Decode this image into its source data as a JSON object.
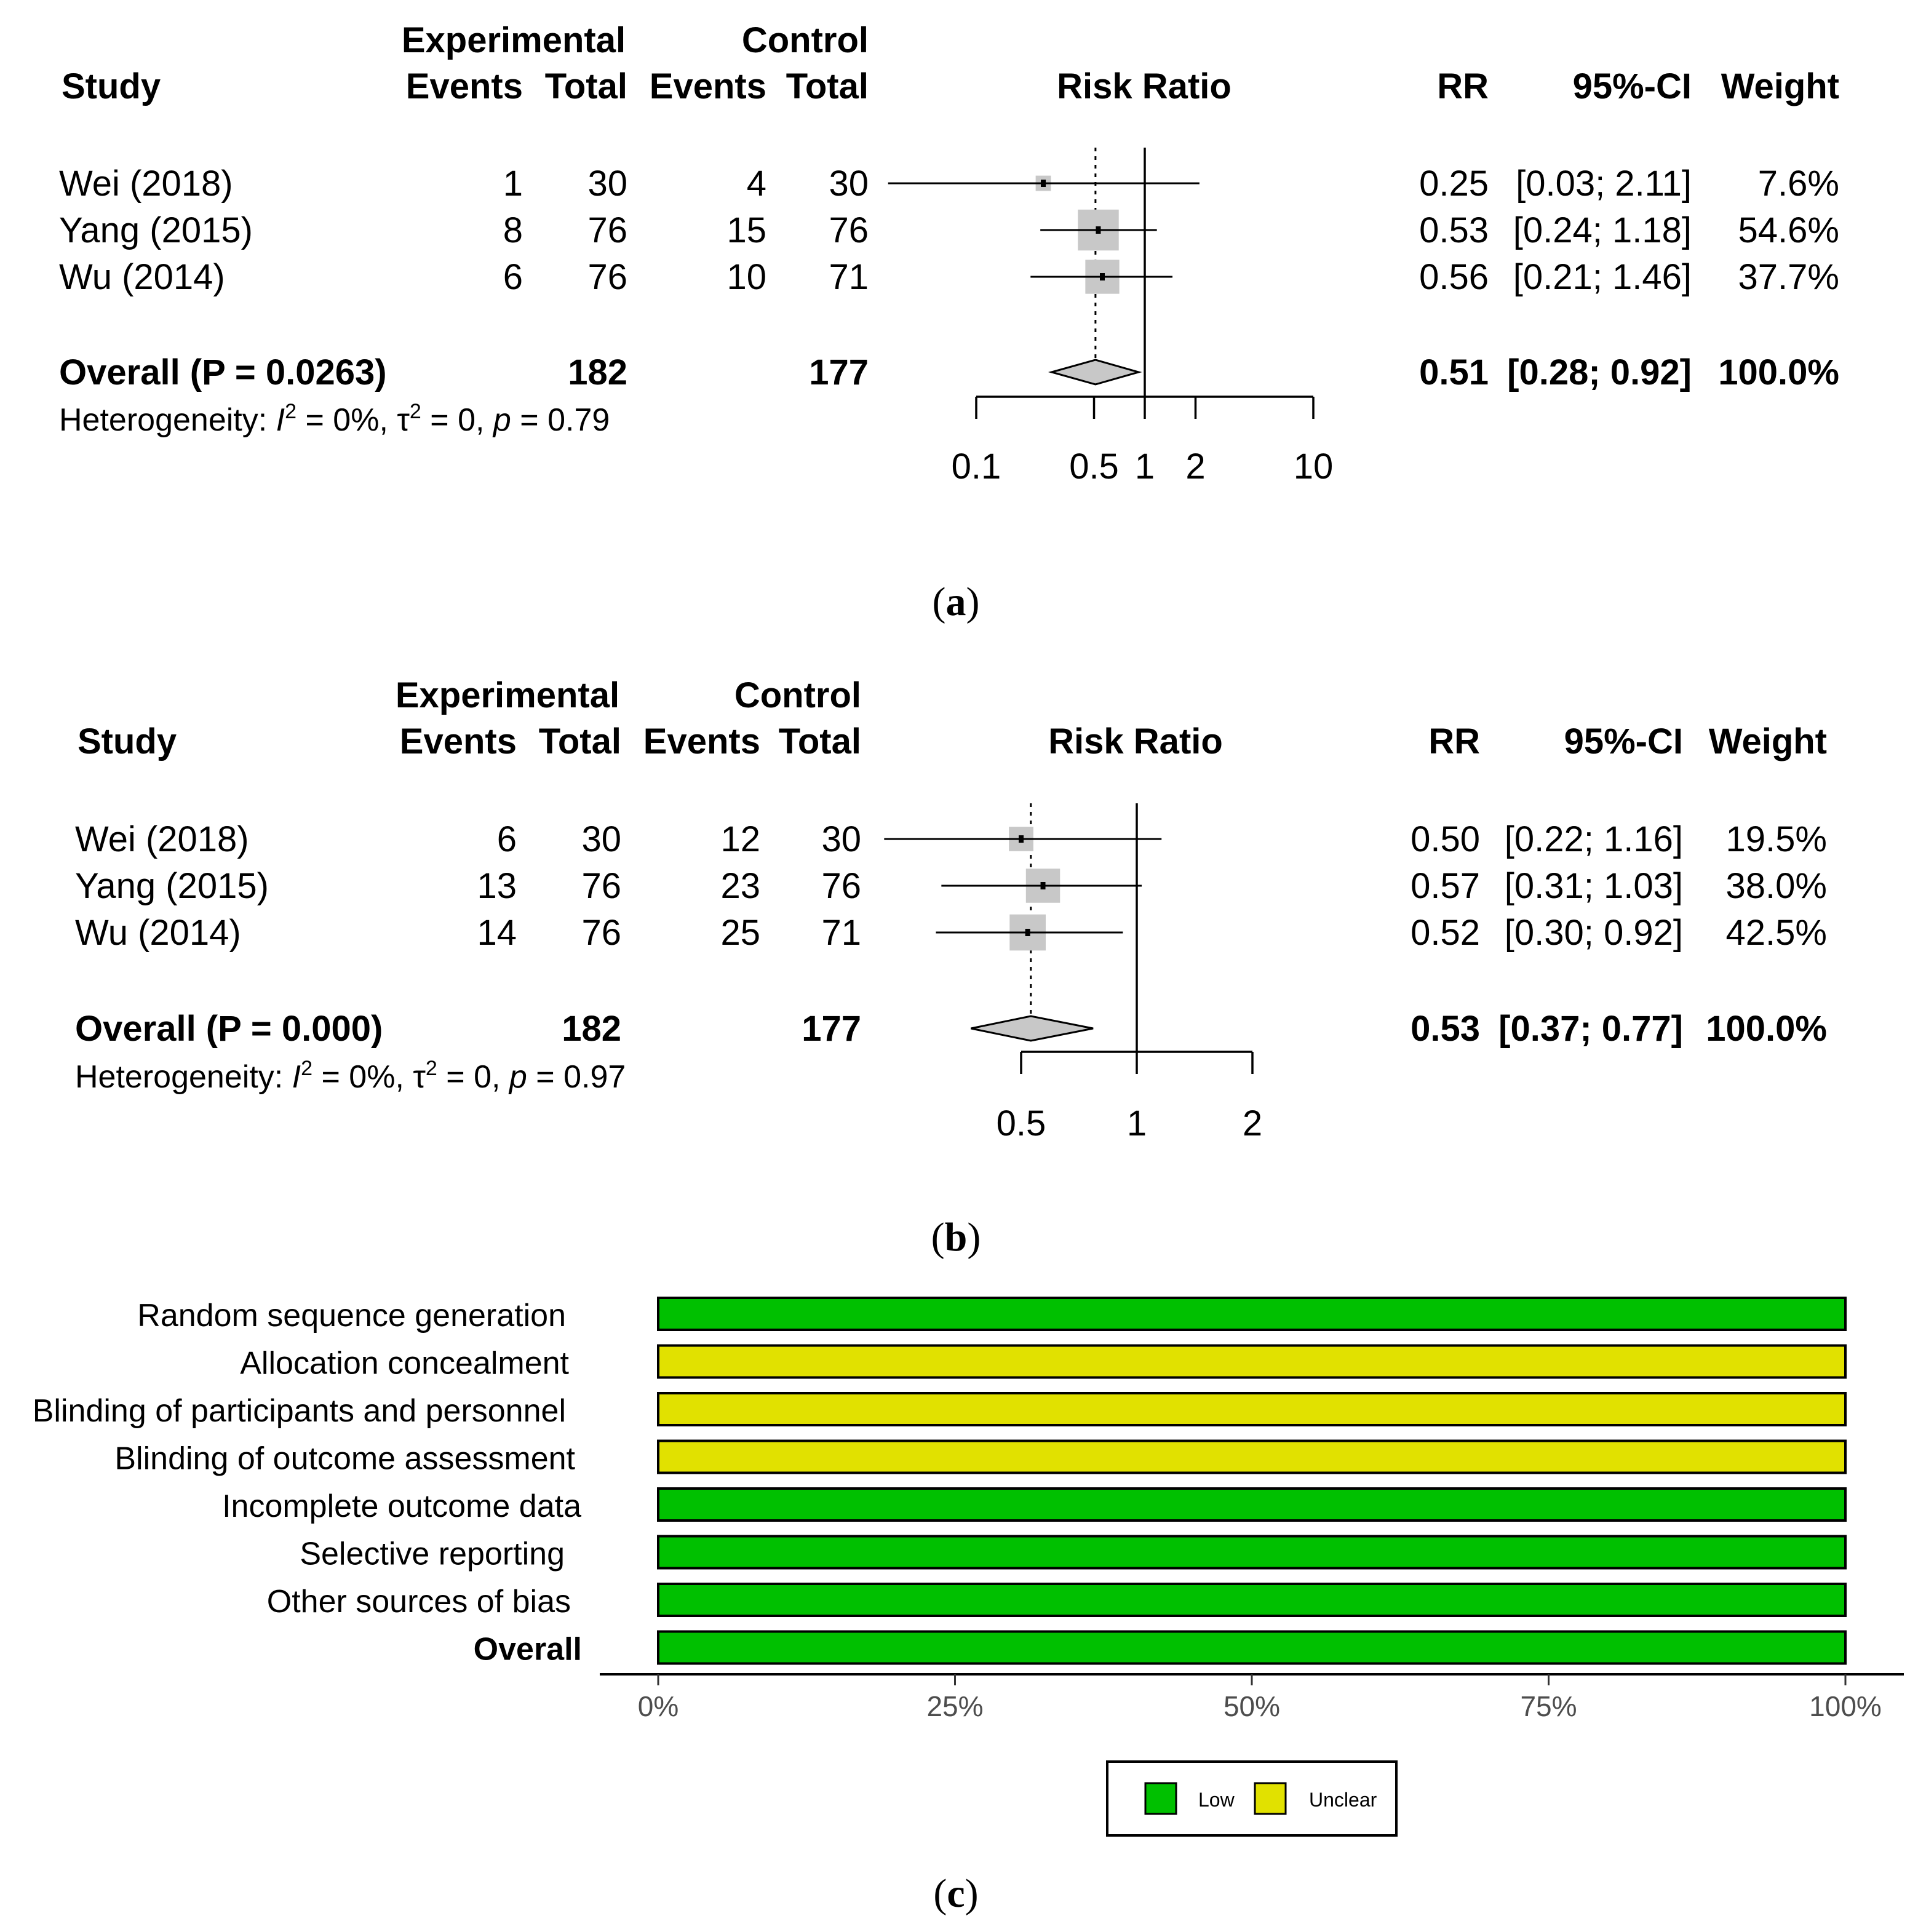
{
  "panels": [
    {
      "caption": "(a)",
      "headers": {
        "study": "Study",
        "experimental": "Experimental",
        "control": "Control",
        "events": "Events",
        "total": "Total",
        "risk_ratio": "Risk Ratio",
        "rr": "RR",
        "ci": "95%-CI",
        "weight": "Weight"
      },
      "studies": [
        {
          "name": "Wei (2018)",
          "exp_events": "1",
          "exp_total": "30",
          "ctrl_events": "4",
          "ctrl_total": "30",
          "rr": 0.25,
          "lo": 0.03,
          "hi": 2.11,
          "weight_pct": 7.6,
          "rr_text": "0.25",
          "ci_text": "[0.03; 2.11]",
          "weight_text": "7.6%"
        },
        {
          "name": "Yang (2015)",
          "exp_events": "8",
          "exp_total": "76",
          "ctrl_events": "15",
          "ctrl_total": "76",
          "rr": 0.53,
          "lo": 0.24,
          "hi": 1.18,
          "weight_pct": 54.6,
          "rr_text": "0.53",
          "ci_text": "[0.24; 1.18]",
          "weight_text": "54.6%"
        },
        {
          "name": "Wu (2014)",
          "exp_events": "6",
          "exp_total": "76",
          "ctrl_events": "10",
          "ctrl_total": "71",
          "rr": 0.56,
          "lo": 0.21,
          "hi": 1.46,
          "weight_pct": 37.7,
          "rr_text": "0.56",
          "ci_text": "[0.21; 1.46]",
          "weight_text": "37.7%"
        }
      ],
      "overall": {
        "label": "Overall (P = 0.0263)",
        "exp_total": "182",
        "ctrl_total": "177",
        "rr": 0.51,
        "lo": 0.28,
        "hi": 0.92,
        "rr_text": "0.51",
        "ci_text": "[0.28; 0.92]",
        "weight_text": "100.0%"
      },
      "heterogeneity": {
        "prefix": "Heterogeneity: ",
        "i": "I",
        "sup2": "2",
        "mid": " = 0%, τ",
        "tau_rest": " = 0, ",
        "p": "p",
        "p_rest": " = 0.79"
      },
      "axis": {
        "range": [
          0.1,
          10
        ],
        "ticks": [
          0.1,
          0.5,
          1,
          2,
          10
        ],
        "tick_labels": [
          "0.1",
          "0.5",
          "1",
          "2",
          "10"
        ]
      }
    },
    {
      "caption": "(b)",
      "headers": {
        "study": "Study",
        "experimental": "Experimental",
        "control": "Control",
        "events": "Events",
        "total": "Total",
        "risk_ratio": "Risk Ratio",
        "rr": "RR",
        "ci": "95%-CI",
        "weight": "Weight"
      },
      "studies": [
        {
          "name": "Wei (2018)",
          "exp_events": "6",
          "exp_total": "30",
          "ctrl_events": "12",
          "ctrl_total": "30",
          "rr": 0.5,
          "lo": 0.22,
          "hi": 1.16,
          "weight_pct": 19.5,
          "rr_text": "0.50",
          "ci_text": "[0.22; 1.16]",
          "weight_text": "19.5%"
        },
        {
          "name": "Yang (2015)",
          "exp_events": "13",
          "exp_total": "76",
          "ctrl_events": "23",
          "ctrl_total": "76",
          "rr": 0.57,
          "lo": 0.31,
          "hi": 1.03,
          "weight_pct": 38.0,
          "rr_text": "0.57",
          "ci_text": "[0.31; 1.03]",
          "weight_text": "38.0%"
        },
        {
          "name": "Wu (2014)",
          "exp_events": "14",
          "exp_total": "76",
          "ctrl_events": "25",
          "ctrl_total": "71",
          "rr": 0.52,
          "lo": 0.3,
          "hi": 0.92,
          "weight_pct": 42.5,
          "rr_text": "0.52",
          "ci_text": "[0.30; 0.92]",
          "weight_text": "42.5%"
        }
      ],
      "overall": {
        "label": "Overall (P = 0.000)",
        "exp_total": "182",
        "ctrl_total": "177",
        "rr": 0.53,
        "lo": 0.37,
        "hi": 0.77,
        "rr_text": "0.53",
        "ci_text": "[0.37; 0.77]",
        "weight_text": "100.0%"
      },
      "heterogeneity": {
        "prefix": "Heterogeneity: ",
        "i": "I",
        "sup2": "2",
        "mid": " = 0%, τ",
        "tau_rest": " = 0, ",
        "p": "p",
        "p_rest": " = 0.97"
      },
      "axis": {
        "range": [
          0.5,
          2
        ],
        "ticks": [
          0.5,
          1,
          2
        ],
        "tick_labels": [
          "0.5",
          "1",
          "2"
        ]
      }
    }
  ],
  "bias": {
    "caption": "(c)",
    "domains": [
      {
        "label": "Random sequence  generation",
        "judgement": "Low",
        "pct": 100
      },
      {
        "label": "Allocation concealment",
        "judgement": "Unclear",
        "pct": 100
      },
      {
        "label": "Blinding of participants and  personnel",
        "judgement": "Unclear",
        "pct": 100
      },
      {
        "label": "Blinding  of outcome  assessment",
        "judgement": "Unclear",
        "pct": 100
      },
      {
        "label": "Incomplete  outcome  data",
        "judgement": "Low",
        "pct": 100
      },
      {
        "label": "Selective  reporting",
        "judgement": "Low",
        "pct": 100
      },
      {
        "label": "Other sources of bias",
        "judgement": "Low",
        "pct": 100
      },
      {
        "label": "Overall",
        "judgement": "Low",
        "pct": 100,
        "bold": true
      }
    ],
    "x_ticks": [
      0,
      25,
      50,
      75,
      100
    ],
    "x_tick_labels": [
      "0%",
      "25%",
      "50%",
      "75%",
      "100%"
    ],
    "legend": [
      {
        "label": "Low",
        "color": "#00c000"
      },
      {
        "label": "Unclear",
        "color": "#e1e100"
      }
    ]
  },
  "chart_data": [
    {
      "type": "forest",
      "title": "(a)",
      "xlabel": "Risk Ratio",
      "xscale": "log",
      "xlim": [
        0.1,
        10
      ],
      "studies": [
        "Wei (2018)",
        "Yang (2015)",
        "Wu (2014)"
      ],
      "rr": [
        0.25,
        0.53,
        0.56
      ],
      "ci_low": [
        0.03,
        0.24,
        0.21
      ],
      "ci_high": [
        2.11,
        1.18,
        1.46
      ],
      "weight": [
        7.6,
        54.6,
        37.7
      ],
      "overall": {
        "rr": 0.51,
        "ci": [
          0.28,
          0.92
        ],
        "p": 0.0263
      }
    },
    {
      "type": "forest",
      "title": "(b)",
      "xlabel": "Risk Ratio",
      "xscale": "log",
      "xlim": [
        0.5,
        2
      ],
      "studies": [
        "Wei (2018)",
        "Yang (2015)",
        "Wu (2014)"
      ],
      "rr": [
        0.5,
        0.57,
        0.52
      ],
      "ci_low": [
        0.22,
        0.31,
        0.3
      ],
      "ci_high": [
        1.16,
        1.03,
        0.92
      ],
      "weight": [
        19.5,
        38.0,
        42.5
      ],
      "overall": {
        "rr": 0.53,
        "ci": [
          0.37,
          0.77
        ],
        "p": 0.0
      }
    },
    {
      "type": "bar",
      "orientation": "horizontal",
      "stacked": true,
      "title": "(c)",
      "categories": [
        "Random sequence generation",
        "Allocation concealment",
        "Blinding of participants and personnel",
        "Blinding of outcome assessment",
        "Incomplete outcome data",
        "Selective reporting",
        "Other sources of bias",
        "Overall"
      ],
      "series": [
        {
          "name": "Low",
          "values": [
            100,
            0,
            0,
            0,
            100,
            100,
            100,
            100
          ]
        },
        {
          "name": "Unclear",
          "values": [
            0,
            100,
            100,
            100,
            0,
            0,
            0,
            0
          ]
        }
      ],
      "xlim": [
        0,
        100
      ],
      "xlabel": "",
      "ylabel": "",
      "legend": "bottom"
    }
  ]
}
